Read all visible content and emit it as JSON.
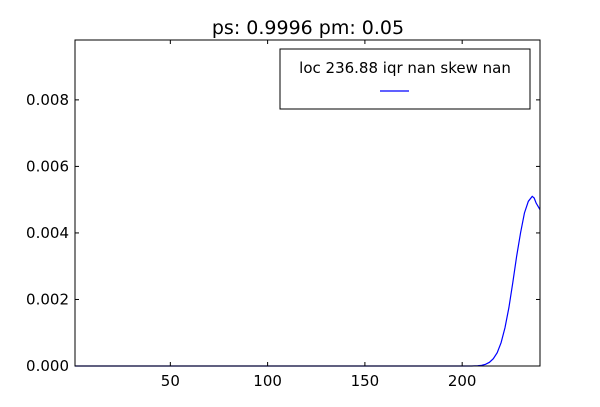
{
  "chart_data": {
    "type": "line",
    "title": "ps: 0.9996 pm: 0.05",
    "xlabel": "",
    "ylabel": "",
    "xlim": [
      1,
      240
    ],
    "ylim": [
      0,
      0.0098
    ],
    "xticks": [
      50,
      100,
      150,
      200
    ],
    "yticks": [
      0.0,
      0.002,
      0.004,
      0.006,
      0.008
    ],
    "ytick_labels": [
      "0.000",
      "0.002",
      "0.004",
      "0.006",
      "0.008"
    ],
    "grid": false,
    "legend_position": "top-right",
    "series": [
      {
        "name": "loc 236.88 iqr nan skew nan",
        "color": "#0000ff",
        "x": [
          1,
          200,
          205,
          208,
          210,
          212,
          214,
          216,
          218,
          220,
          222,
          224,
          226,
          228,
          230,
          232,
          234,
          236,
          237,
          238,
          239,
          240
        ],
        "y": [
          0.0,
          0.0,
          0.0,
          1e-05,
          2e-05,
          5e-05,
          0.00011,
          0.00022,
          0.0004,
          0.0007,
          0.00115,
          0.00175,
          0.0025,
          0.0033,
          0.004,
          0.0046,
          0.00495,
          0.0051,
          0.00505,
          0.0049,
          0.0048,
          0.0047
        ]
      }
    ]
  }
}
